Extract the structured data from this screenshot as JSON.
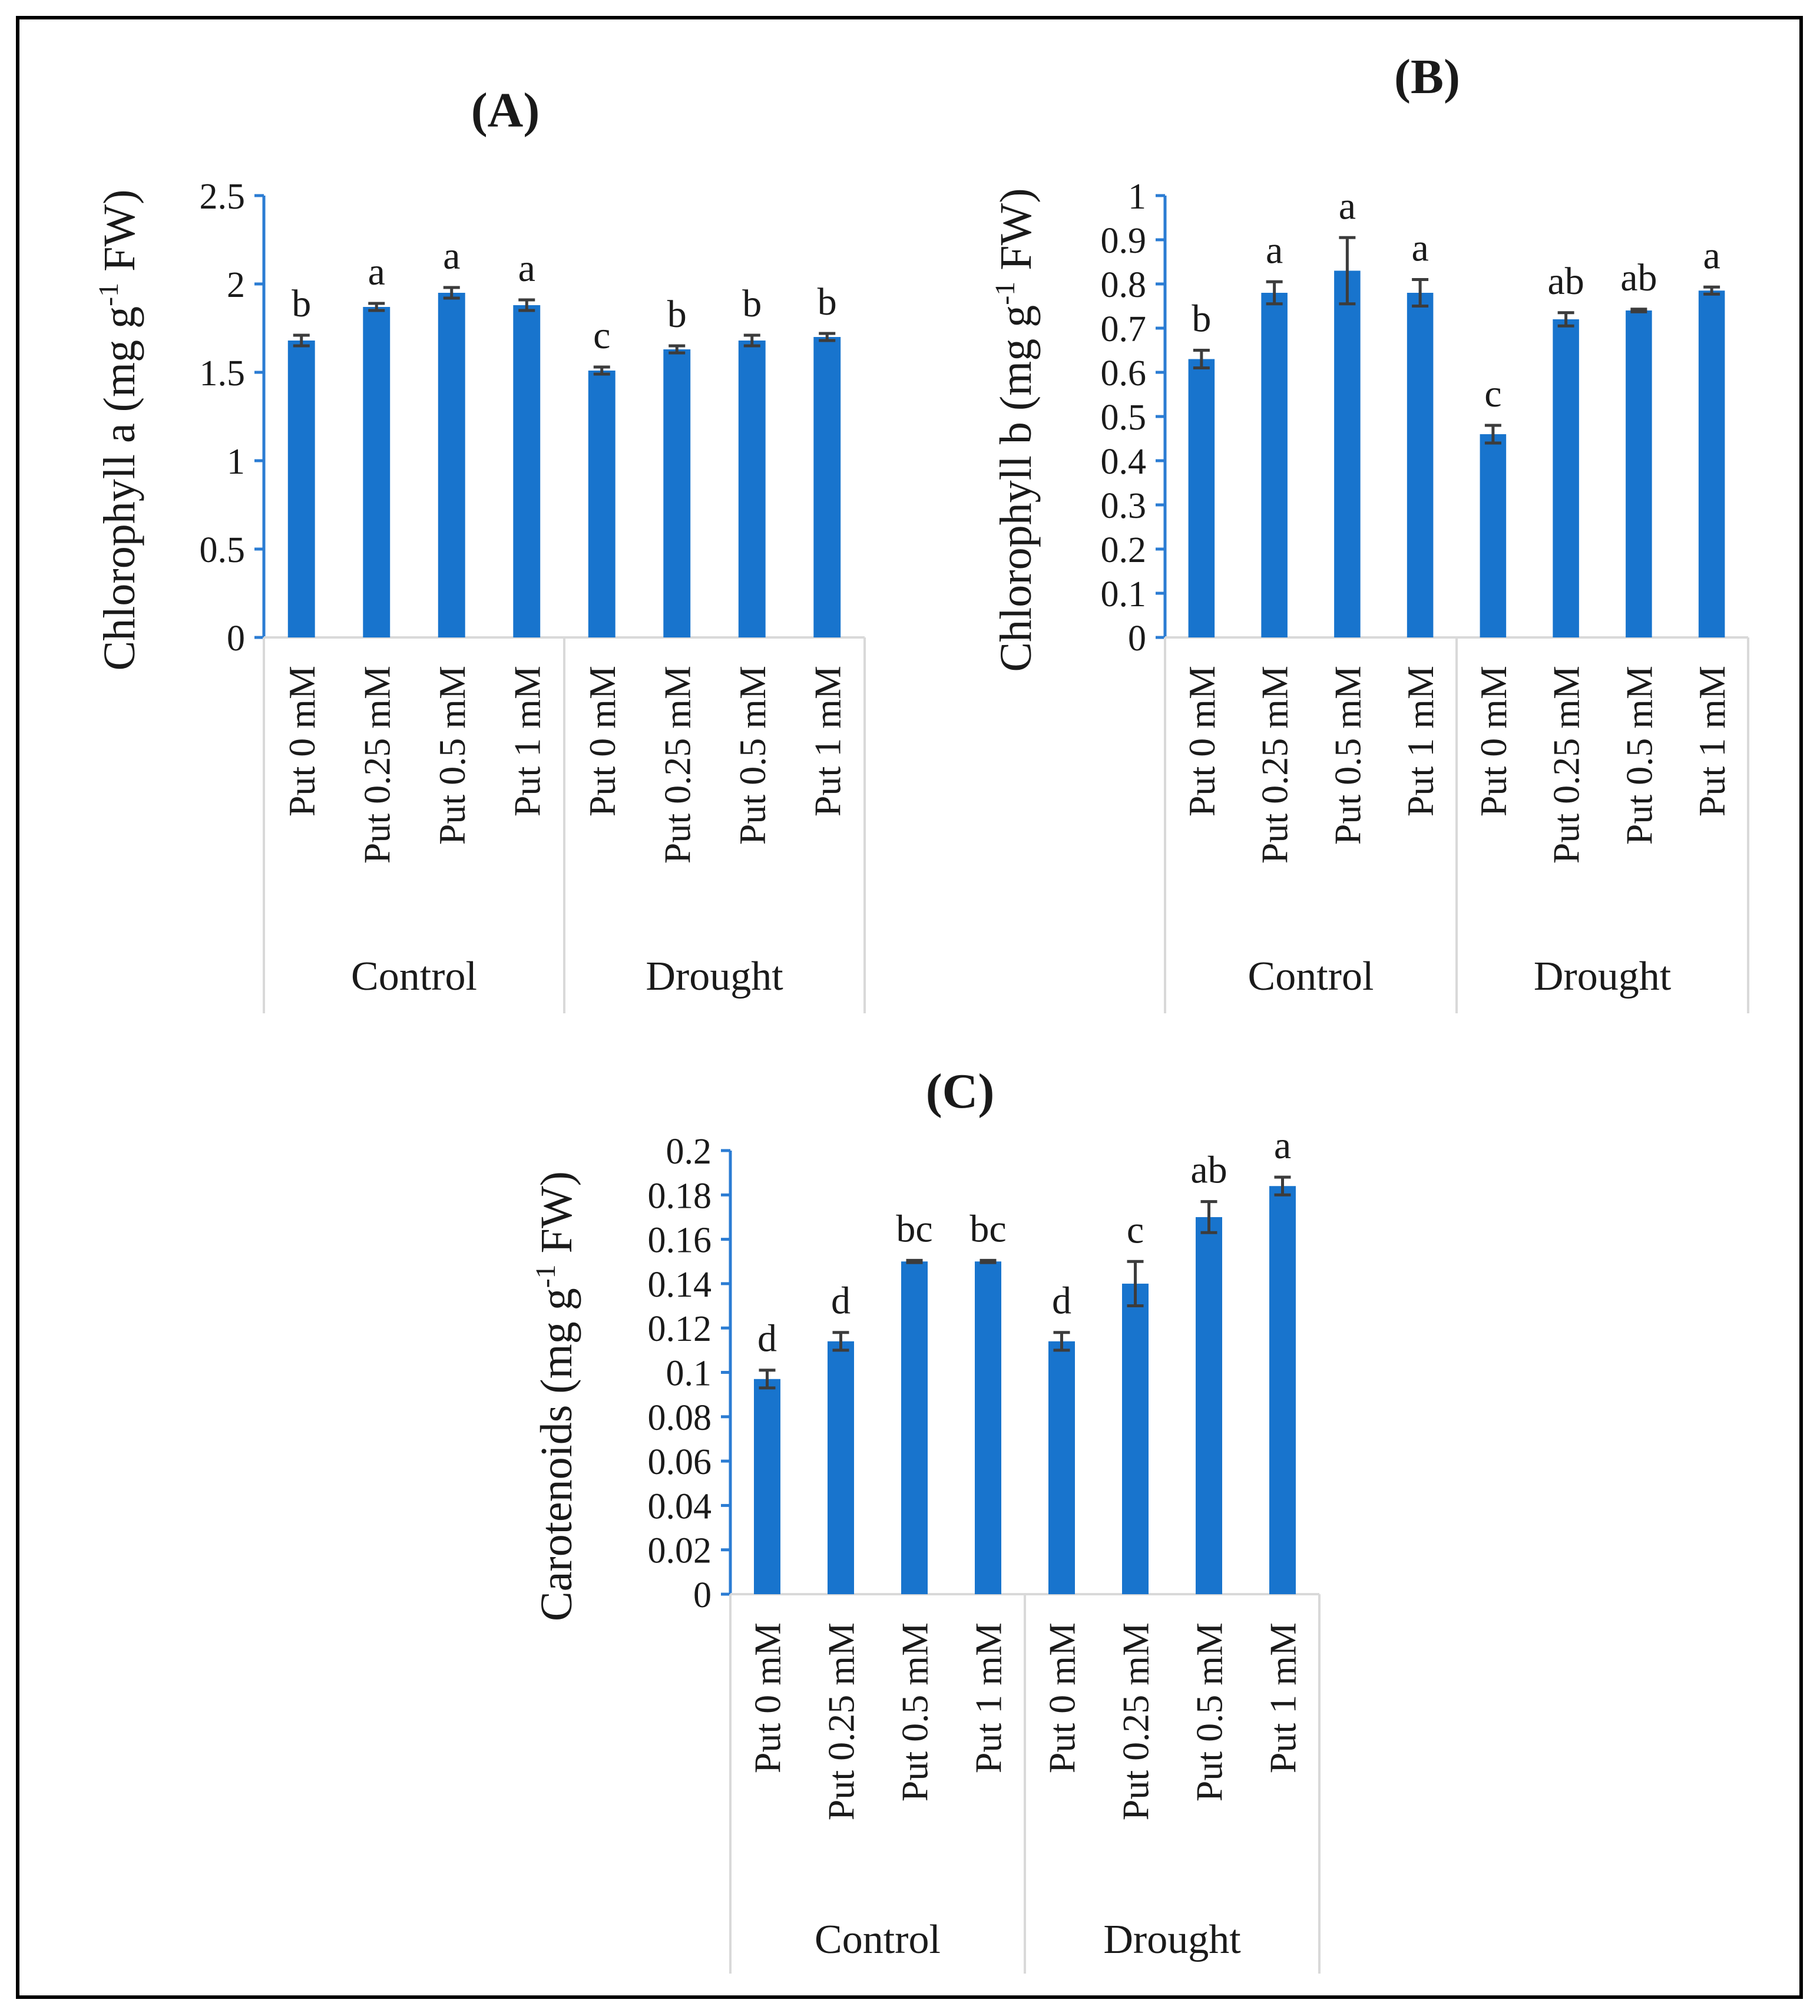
{
  "colors": {
    "bar": "#1874cd",
    "axis": "#2b7cd3",
    "error_bar": "#3c3c3c",
    "grid_group_line": "#d9d9d9",
    "frame": "#000000"
  },
  "chart_data": [
    {
      "type": "bar",
      "panel_label": "(A)",
      "ylabel": "Chlorophyll a (mg g⁻¹ FW)",
      "ylim": [
        0,
        2.5
      ],
      "yticks": [
        "0",
        "0.5",
        "1",
        "1.5",
        "2",
        "2.5"
      ],
      "ytick_values": [
        0,
        0.5,
        1,
        1.5,
        2,
        2.5
      ],
      "categories": [
        "Put 0 mM",
        "Put 0.25 mM",
        "Put 0.5 mM",
        "Put 1 mM",
        "Put 0 mM",
        "Put 0.25 mM",
        "Put 0.5 mM",
        "Put 1 mM"
      ],
      "groups": [
        "Control",
        "Drought"
      ],
      "values": [
        1.68,
        1.87,
        1.95,
        1.88,
        1.51,
        1.63,
        1.68,
        1.7
      ],
      "errors": [
        0.03,
        0.02,
        0.03,
        0.03,
        0.02,
        0.02,
        0.03,
        0.02
      ],
      "letters": [
        "b",
        "a",
        "a",
        "a",
        "c",
        "b",
        "b",
        "b"
      ]
    },
    {
      "type": "bar",
      "panel_label": "(B)",
      "ylabel": "Chlorophyll b (mg g⁻¹ FW)",
      "ylim": [
        0,
        1
      ],
      "yticks": [
        "0",
        "0.1",
        "0.2",
        "0.3",
        "0.4",
        "0.5",
        "0.6",
        "0.7",
        "0.8",
        "0.9",
        "1"
      ],
      "ytick_values": [
        0,
        0.1,
        0.2,
        0.3,
        0.4,
        0.5,
        0.6,
        0.7,
        0.8,
        0.9,
        1
      ],
      "categories": [
        "Put 0 mM",
        "Put 0.25 mM",
        "Put 0.5 mM",
        "Put 1 mM",
        "Put 0 mM",
        "Put 0.25 mM",
        "Put 0.5 mM",
        "Put 1 mM"
      ],
      "groups": [
        "Control",
        "Drought"
      ],
      "values": [
        0.63,
        0.78,
        0.83,
        0.78,
        0.46,
        0.72,
        0.74,
        0.785
      ],
      "errors": [
        0.02,
        0.025,
        0.075,
        0.03,
        0.02,
        0.015,
        0.003,
        0.008
      ],
      "letters": [
        "b",
        "a",
        "a",
        "a",
        "c",
        "ab",
        "ab",
        "a"
      ]
    },
    {
      "type": "bar",
      "panel_label": "(C)",
      "ylabel": "Carotenoids (mg g⁻¹ FW)",
      "ylim": [
        0,
        0.2
      ],
      "yticks": [
        "0",
        "0.02",
        "0.04",
        "0.06",
        "0.08",
        "0.1",
        "0.12",
        "0.14",
        "0.16",
        "0.18",
        "0.2"
      ],
      "ytick_values": [
        0,
        0.02,
        0.04,
        0.06,
        0.08,
        0.1,
        0.12,
        0.14,
        0.16,
        0.18,
        0.2
      ],
      "categories": [
        "Put 0 mM",
        "Put 0.25 mM",
        "Put 0.5 mM",
        "Put 1 mM",
        "Put 0 mM",
        "Put 0.25 mM",
        "Put 0.5 mM",
        "Put 1 mM"
      ],
      "groups": [
        "Control",
        "Drought"
      ],
      "values": [
        0.097,
        0.114,
        0.15,
        0.15,
        0.114,
        0.14,
        0.17,
        0.184
      ],
      "errors": [
        0.004,
        0.004,
        0.0005,
        0.0005,
        0.004,
        0.01,
        0.007,
        0.004
      ],
      "letters": [
        "d",
        "d",
        "bc",
        "bc",
        "d",
        "c",
        "ab",
        "a"
      ]
    }
  ]
}
